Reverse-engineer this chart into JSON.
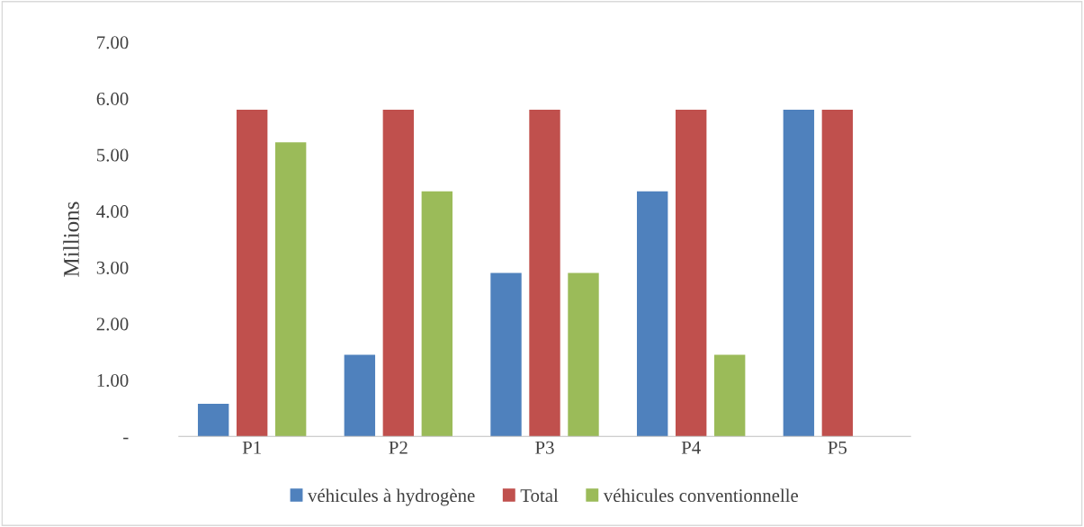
{
  "chart_data": {
    "type": "bar",
    "ylabel": "Millions",
    "categories": [
      "P1",
      "P2",
      "P3",
      "P4",
      "P5"
    ],
    "series": [
      {
        "name": "véhicules à hydrogène",
        "color": "#4f81bd",
        "values": [
          0.58,
          1.45,
          2.9,
          4.35,
          5.8
        ]
      },
      {
        "name": "Total",
        "color": "#c0504d",
        "values": [
          5.8,
          5.8,
          5.8,
          5.8,
          5.8
        ]
      },
      {
        "name": "véhicules conventionnelle",
        "color": "#9bbb59",
        "values": [
          5.22,
          4.35,
          2.9,
          1.45,
          0
        ]
      }
    ],
    "ylim": [
      0,
      7
    ],
    "yticks": [
      {
        "value": 0,
        "label": "-"
      },
      {
        "value": 1,
        "label": "1.00"
      },
      {
        "value": 2,
        "label": "2.00"
      },
      {
        "value": 3,
        "label": "3.00"
      },
      {
        "value": 4,
        "label": "4.00"
      },
      {
        "value": 5,
        "label": "5.00"
      },
      {
        "value": 6,
        "label": "6.00"
      },
      {
        "value": 7,
        "label": "7.00"
      }
    ],
    "grid": false,
    "legend": "bottom"
  }
}
